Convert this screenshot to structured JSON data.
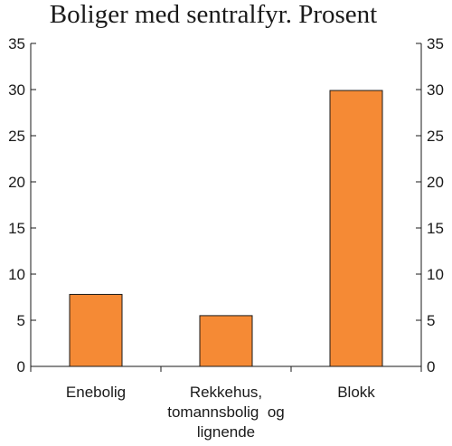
{
  "chart_data": {
    "type": "bar",
    "title": "Boliger med sentralfyr. Prosent",
    "categories": [
      [
        "Enebolig"
      ],
      [
        "Rekkehus,",
        "tomannsbolig  og",
        "lignende"
      ],
      [
        "Blokk"
      ]
    ],
    "values": [
      7.8,
      5.5,
      29.9
    ],
    "ylim": [
      0,
      35
    ],
    "yticks": [
      0,
      5,
      10,
      15,
      20,
      25,
      30,
      35
    ],
    "right_axis_ticks": true,
    "grid": false,
    "bar_color": "#f58a35",
    "xlabel": "",
    "ylabel": ""
  }
}
